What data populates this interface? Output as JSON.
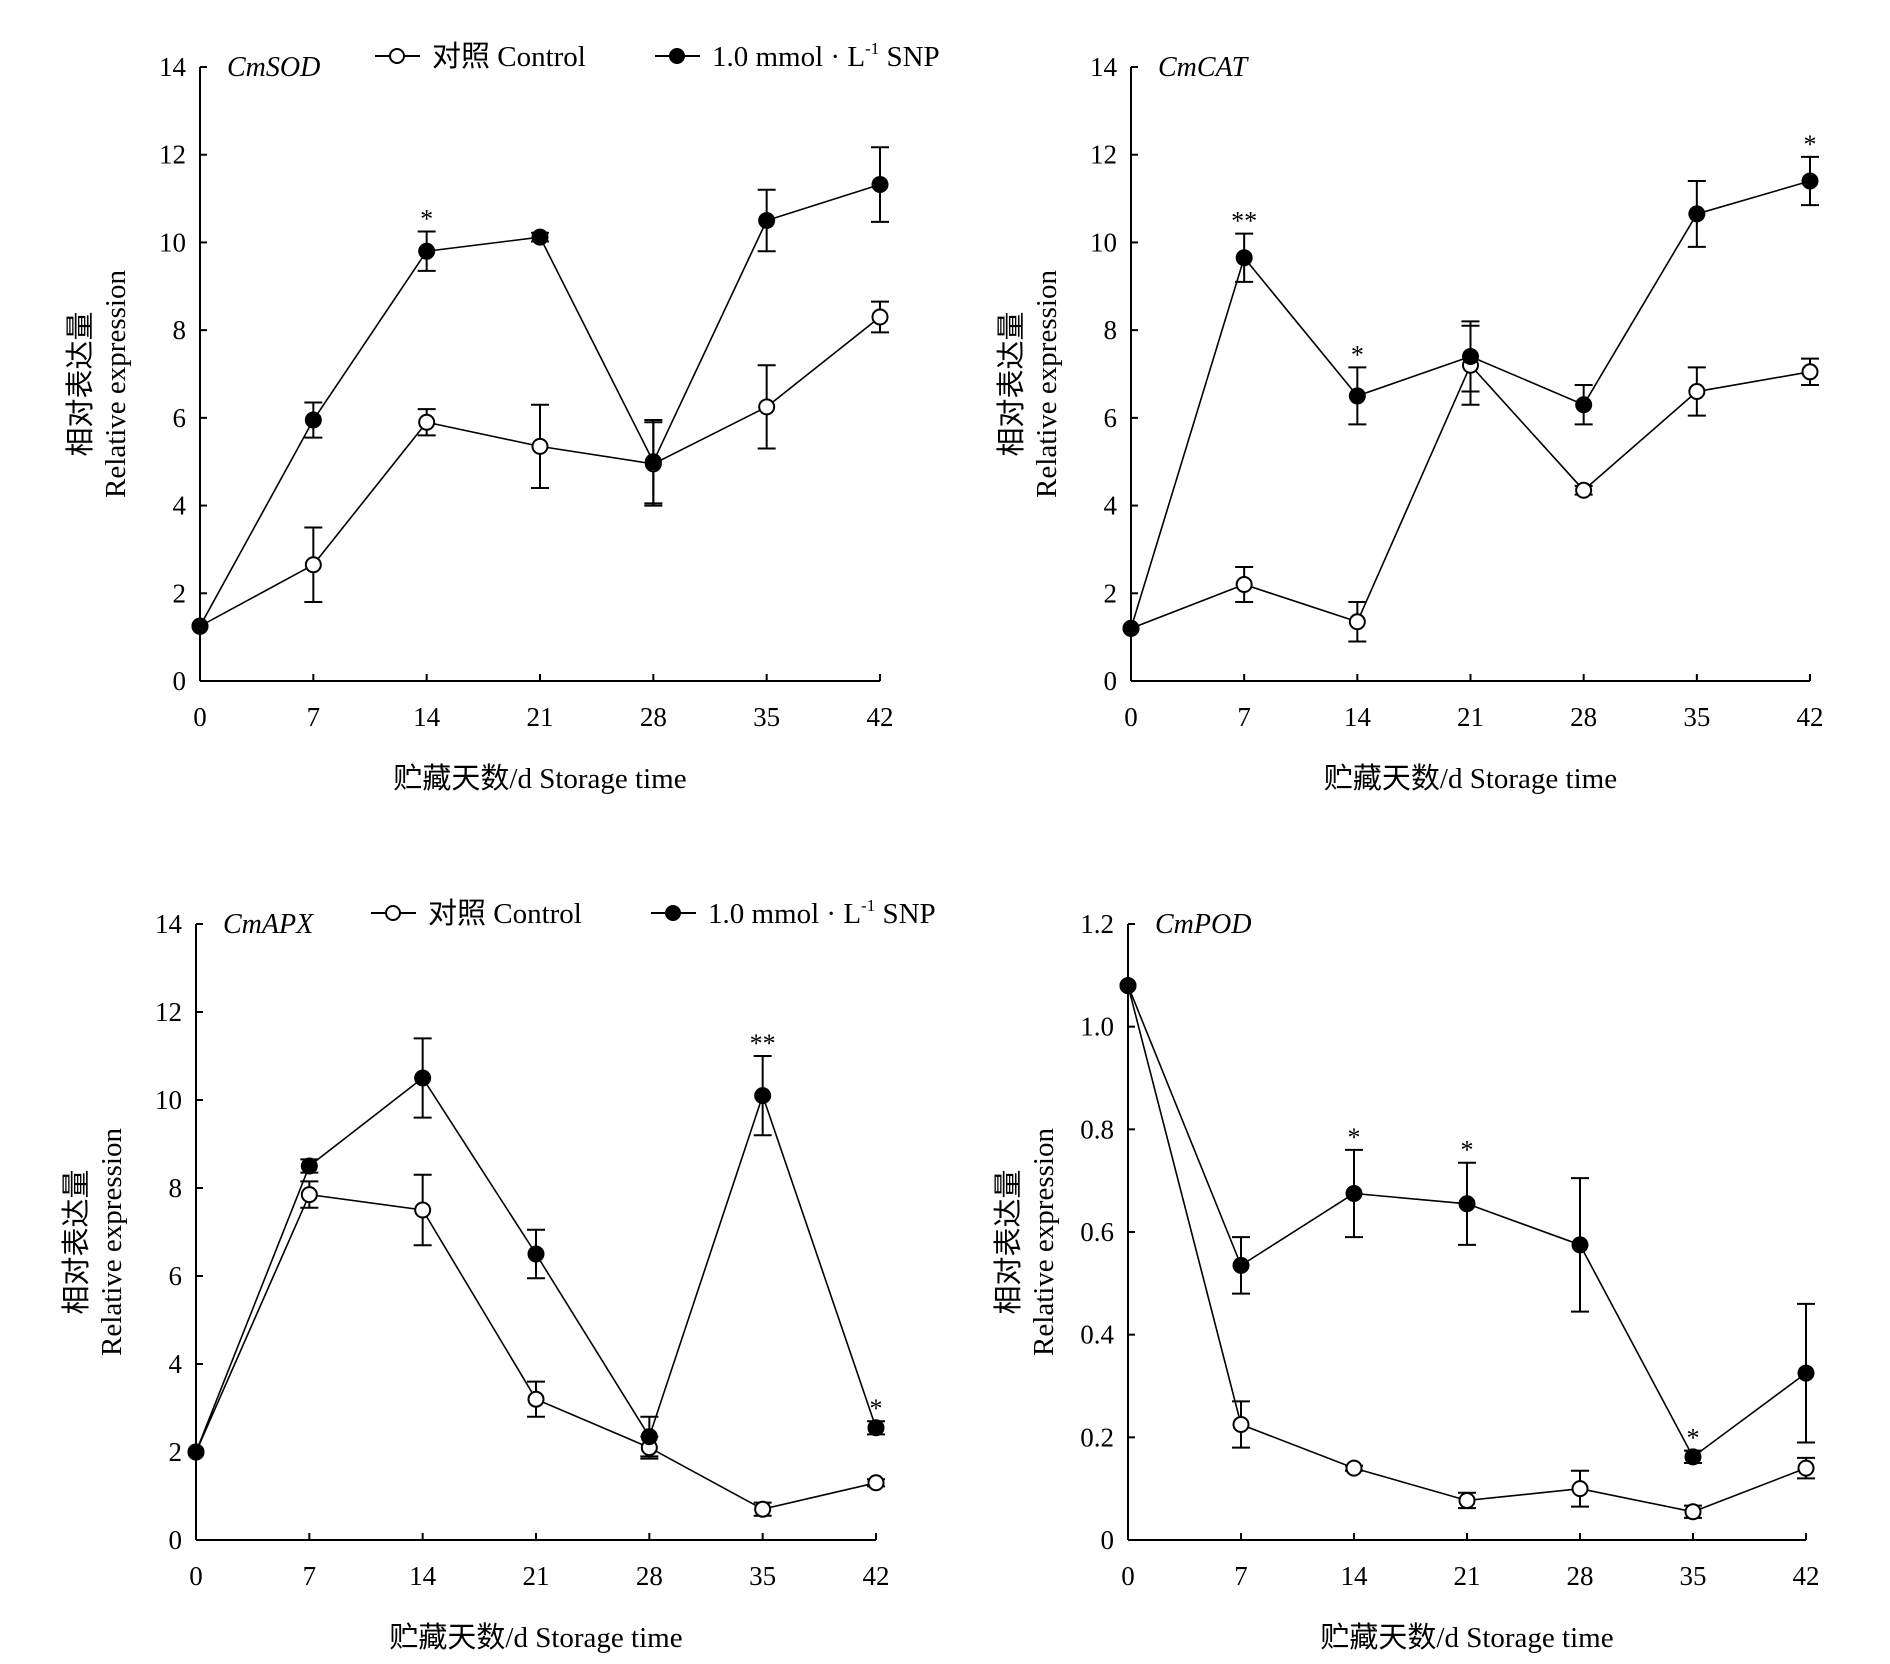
{
  "legend": {
    "control": "对照  Control",
    "snp_prefix": "1.0 mmol · L",
    "snp_sup": "-1",
    "snp_suffix": " SNP"
  },
  "chart_data": [
    {
      "type": "line",
      "title": "CmSOD",
      "xlabel": "贮藏天数/d Storage time",
      "ylabel_cn": "相对表达量",
      "ylabel_en": "Relative expression",
      "x": [
        0,
        7,
        14,
        21,
        28,
        35,
        42
      ],
      "ylim": [
        0,
        14
      ],
      "yticks": [
        0,
        2,
        4,
        6,
        8,
        10,
        12,
        14
      ],
      "ytick_labels": [
        "0",
        "2",
        "4",
        "6",
        "8",
        "10",
        "12",
        "14"
      ],
      "legend": true,
      "series": [
        {
          "name": "对照 Control",
          "marker": "open",
          "values": [
            1.25,
            2.65,
            5.9,
            5.35,
            4.95,
            6.25,
            8.3
          ],
          "errors": [
            0,
            0.85,
            0.3,
            0.95,
            0.95,
            0.95,
            0.35
          ]
        },
        {
          "name": "1.0 mmol·L-1 SNP",
          "marker": "filled",
          "values": [
            1.25,
            5.95,
            9.8,
            10.12,
            5.0,
            10.5,
            11.32
          ],
          "errors": [
            0,
            0.4,
            0.45,
            0.1,
            0.95,
            0.7,
            0.85
          ]
        }
      ],
      "annotations": [
        {
          "x": 14,
          "text": "*",
          "series": 1
        }
      ]
    },
    {
      "type": "line",
      "title": "CmCAT",
      "xlabel": "贮藏天数/d Storage time",
      "ylabel_cn": "相对表达量",
      "ylabel_en": "Relative expression",
      "x": [
        0,
        7,
        14,
        21,
        28,
        35,
        42
      ],
      "ylim": [
        0,
        14
      ],
      "yticks": [
        0,
        2,
        4,
        6,
        8,
        10,
        12,
        14
      ],
      "ytick_labels": [
        "0",
        "2",
        "4",
        "6",
        "8",
        "10",
        "12",
        "14"
      ],
      "legend": false,
      "series": [
        {
          "name": "对照 Control",
          "marker": "open",
          "values": [
            1.2,
            2.2,
            1.35,
            7.2,
            4.35,
            6.6,
            7.05
          ],
          "errors": [
            0,
            0.4,
            0.45,
            0.9,
            0.1,
            0.55,
            0.3
          ]
        },
        {
          "name": "1.0 mmol·L-1 SNP",
          "marker": "filled",
          "values": [
            1.2,
            9.65,
            6.5,
            7.4,
            6.3,
            10.65,
            11.4
          ],
          "errors": [
            0,
            0.55,
            0.65,
            0.8,
            0.45,
            0.75,
            0.55
          ]
        }
      ],
      "annotations": [
        {
          "x": 7,
          "text": "**",
          "series": 1
        },
        {
          "x": 14,
          "text": "*",
          "series": 1
        },
        {
          "x": 42,
          "text": "*",
          "series": 1
        }
      ]
    },
    {
      "type": "line",
      "title": "CmAPX",
      "xlabel": "贮藏天数/d Storage time",
      "ylabel_cn": "相对表达量",
      "ylabel_en": "Relative expression",
      "x": [
        0,
        7,
        14,
        21,
        28,
        35,
        42
      ],
      "ylim": [
        0,
        14
      ],
      "yticks": [
        0,
        2,
        4,
        6,
        8,
        10,
        12,
        14
      ],
      "ytick_labels": [
        "0",
        "2",
        "4",
        "6",
        "8",
        "10",
        "12",
        "14"
      ],
      "legend": true,
      "series": [
        {
          "name": "对照 Control",
          "marker": "open",
          "values": [
            2.0,
            7.85,
            7.5,
            3.2,
            2.1,
            0.7,
            1.3
          ],
          "errors": [
            0,
            0.3,
            0.8,
            0.4,
            0.25,
            0.15,
            0.08
          ]
        },
        {
          "name": "1.0 mmol·L-1 SNP",
          "marker": "filled",
          "values": [
            2.0,
            8.5,
            10.5,
            6.5,
            2.35,
            10.1,
            2.55
          ],
          "errors": [
            0,
            0.15,
            0.9,
            0.55,
            0.45,
            0.9,
            0.15
          ]
        }
      ],
      "annotations": [
        {
          "x": 35,
          "text": "**",
          "series": 1
        },
        {
          "x": 42,
          "text": "*",
          "series": 1
        }
      ]
    },
    {
      "type": "line",
      "title": "CmPOD",
      "xlabel": "贮藏天数/d Storage time",
      "ylabel_cn": "相对表达量",
      "ylabel_en": "Relative expression",
      "x": [
        0,
        7,
        14,
        21,
        28,
        35,
        42
      ],
      "ylim": [
        0,
        1.2
      ],
      "yticks": [
        0,
        0.2,
        0.4,
        0.6,
        0.8,
        1.0,
        1.2
      ],
      "ytick_labels": [
        "0",
        "0.2",
        "0.4",
        "0.6",
        "0.8",
        "1.0",
        "1.2"
      ],
      "legend": false,
      "series": [
        {
          "name": "对照 Control",
          "marker": "open",
          "values": [
            1.08,
            0.225,
            0.14,
            0.077,
            0.1,
            0.055,
            0.14
          ],
          "errors": [
            0,
            0.045,
            0.005,
            0.015,
            0.035,
            0.012,
            0.02
          ]
        },
        {
          "name": "1.0 mmol·L-1 SNP",
          "marker": "filled",
          "values": [
            1.08,
            0.535,
            0.675,
            0.655,
            0.575,
            0.162,
            0.325
          ],
          "errors": [
            0,
            0.055,
            0.085,
            0.08,
            0.13,
            0.012,
            0.135
          ]
        }
      ],
      "annotations": [
        {
          "x": 14,
          "text": "*",
          "series": 1
        },
        {
          "x": 21,
          "text": "*",
          "series": 1
        },
        {
          "x": 35,
          "text": "*",
          "series": 1
        }
      ]
    }
  ]
}
